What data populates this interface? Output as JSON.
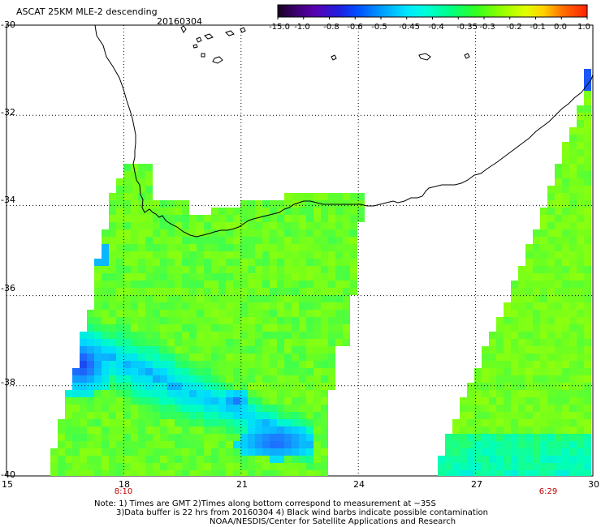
{
  "header": {
    "title": "ASCAT 25KM MLE-2 descending",
    "date": "20160304"
  },
  "colorbar": {
    "labels": [
      "-15.0",
      "-1.0",
      "-0.8",
      "-0.6",
      "-0.5",
      "-0.45",
      "-0.4",
      "-0.35",
      "-0.3",
      "-0.2",
      "-0.1",
      "0.0",
      "1.0"
    ],
    "colors": [
      "#2a0030",
      "#4b0080",
      "#3a18c8",
      "#0040ff",
      "#0090ff",
      "#00d8ff",
      "#00ffd0",
      "#00ff80",
      "#40ff00",
      "#a0ff00",
      "#ffff00",
      "#ff9000",
      "#ff2000"
    ]
  },
  "map": {
    "lon_min": 15,
    "lon_max": 30,
    "lat_min": -40,
    "lat_max": -30,
    "x_ticks": [
      "15",
      "18",
      "21",
      "24",
      "27",
      "30"
    ],
    "y_ticks": [
      "-30",
      "-32",
      "-34",
      "-36",
      "-38",
      "-40"
    ]
  },
  "pass_times": [
    "8:10",
    "6:29"
  ],
  "footer": {
    "line1": "Note: 1) Times are GMT 2)Times along bottom correspond to measurement at ~35S",
    "line2": "3)Data buffer is 22 hrs from 20160304 4) Black wind barbs indicate possible contamination",
    "line3": "NOAA/NESDIS/Center for Satellite Applications and Research"
  }
}
